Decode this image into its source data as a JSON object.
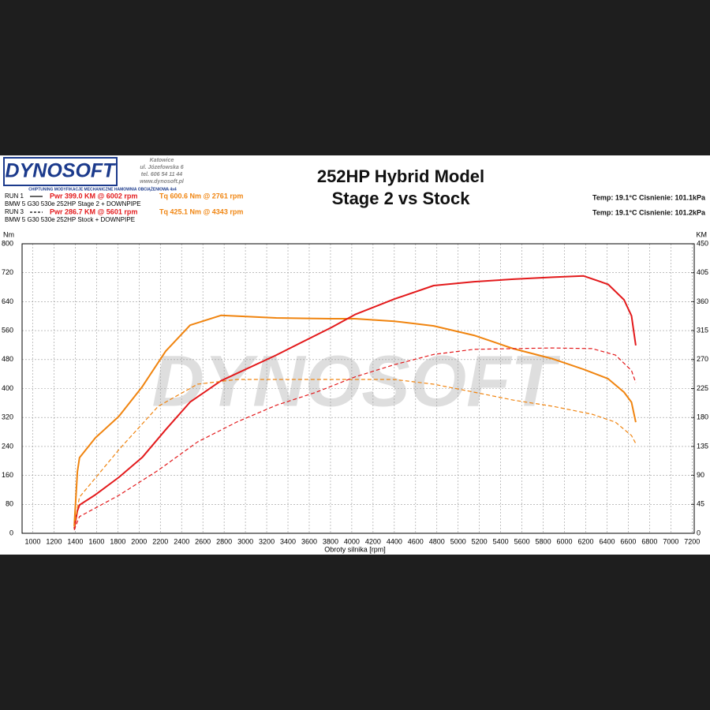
{
  "header": {
    "logo": "DYNOSOFT",
    "address": [
      "Katowice",
      "ul. Józefowska 6",
      "tel. 606 54 11 44",
      "www.dynosoft.pl"
    ],
    "tagline": "CHIPTUNING   MODYFIKACJE MECHANICZNE   HAMOWNIA OBCIĄŻENIOWA 4x4",
    "title": [
      "252HP Hybrid Model",
      "Stage 2 vs Stock"
    ],
    "runs": [
      {
        "run": "RUN 1",
        "power": "Pwr  399.0 KM @ 6002 rpm",
        "torque": "Tq 600.6 Nm @ 2761 rpm",
        "car": "BMW 5 G30 530e 252HP  Stage 2 + DOWNPIPE",
        "line_style": "solid"
      },
      {
        "run": "RUN 3",
        "power": "Pwr  286.7 KM @ 5601 rpm",
        "torque": "Tq 425.1 Nm @ 4343 rpm",
        "car": "BMW 5 G30 530e 252HP  Stock + DOWNPIPE",
        "line_style": "dashed"
      }
    ],
    "conditions": [
      "Temp: 19.1°C    Cisnienie: 101.1kPa",
      "Temp: 19.1°C    Cisnienie: 101.2kPa"
    ],
    "watermark": "DYNOSOFT"
  },
  "chart_data": {
    "type": "line",
    "y_label": "Nm",
    "y2_label": "KM",
    "x_label": "Obroty silnika [rpm]",
    "xlim": [
      900,
      7220
    ],
    "xticks": [
      1000,
      1200,
      1400,
      1600,
      1800,
      2000,
      2200,
      2400,
      2600,
      2800,
      3000,
      3200,
      3400,
      3600,
      3800,
      4000,
      4200,
      4400,
      4600,
      4800,
      5000,
      5200,
      5400,
      5600,
      5800,
      6000,
      6200,
      6400,
      6600,
      6800,
      7000,
      7200
    ],
    "ylim": [
      0,
      800
    ],
    "yticks": [
      0,
      80,
      160,
      240,
      320,
      400,
      480,
      560,
      640,
      720,
      800
    ],
    "y2lim": [
      0,
      450
    ],
    "y2ticks": [
      0,
      45,
      90,
      135,
      180,
      225,
      270,
      315,
      360,
      405,
      450
    ],
    "grid": true,
    "series": [
      {
        "color": "#f0840f",
        "line_style": "solid",
        "axis": "y",
        "x": [
          1390,
          1420,
          1440,
          1590,
          1810,
          2030,
          2250,
          2480,
          2770,
          3290,
          3810,
          4030,
          4400,
          4770,
          5150,
          5520,
          5890,
          6180,
          6410,
          6560,
          6630,
          6670
        ],
        "values": [
          20,
          170,
          209,
          264,
          323,
          405,
          503,
          575,
          602,
          595,
          593,
          593,
          586,
          573,
          547,
          510,
          482,
          453,
          427,
          390,
          362,
          307
        ]
      },
      {
        "color": "#e31a1c",
        "line_style": "solid",
        "axis": "y2",
        "x": [
          1390,
          1420,
          1440,
          1590,
          1810,
          2030,
          2250,
          2480,
          2770,
          3290,
          3810,
          4030,
          4400,
          4770,
          5150,
          5520,
          5890,
          6180,
          6410,
          6560,
          6630,
          6670
        ],
        "values": [
          7,
          35,
          44,
          60,
          87,
          118,
          161,
          204,
          237,
          277,
          320,
          340,
          364,
          385,
          391,
          395,
          398,
          400,
          387,
          363,
          338,
          292
        ]
      },
      {
        "color": "#f0840f",
        "line_style": "dashed",
        "axis": "y",
        "x": [
          1390,
          1420,
          1440,
          1810,
          2180,
          2550,
          2920,
          3290,
          3660,
          4030,
          4400,
          4770,
          5150,
          5520,
          5890,
          6260,
          6480,
          6630,
          6670
        ],
        "values": [
          17,
          70,
          100,
          231,
          351,
          412,
          425,
          425,
          425,
          425,
          425,
          412,
          390,
          368,
          351,
          329,
          307,
          270,
          248
        ]
      },
      {
        "color": "#e31a1c",
        "line_style": "dashed",
        "axis": "y2",
        "x": [
          1390,
          1420,
          1440,
          1810,
          2180,
          2550,
          2920,
          3290,
          3660,
          4030,
          4400,
          4770,
          5150,
          5520,
          5890,
          6260,
          6480,
          6630,
          6670
        ],
        "values": [
          5,
          18,
          26,
          59,
          98,
          142,
          173,
          199,
          219,
          243,
          262,
          278,
          286,
          287,
          288,
          287,
          277,
          253,
          234
        ]
      }
    ]
  }
}
